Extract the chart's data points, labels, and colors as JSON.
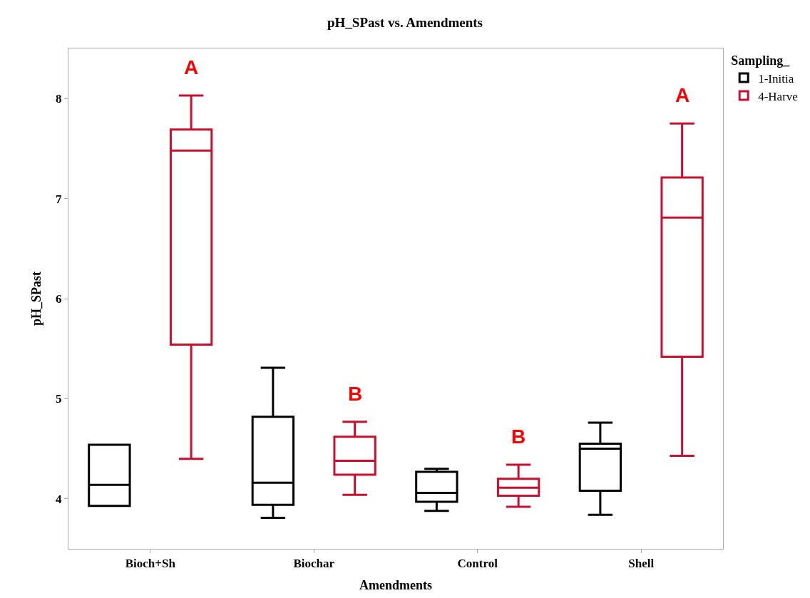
{
  "chart_data": {
    "type": "box",
    "title": "pH_SPast vs. Amendments",
    "xlabel": "Amendments",
    "ylabel": "pH_SPast",
    "legend_title": "Sampling_",
    "categories": [
      "Bioch+Sh",
      "Biochar",
      "Control",
      "Shell"
    ],
    "series": [
      {
        "name": "1-Initia",
        "color": "#000000",
        "boxes": [
          {
            "low": 3.93,
            "q1": 3.93,
            "median": 4.14,
            "q3": 4.54,
            "high": 4.54
          },
          {
            "low": 3.81,
            "q1": 3.94,
            "median": 4.16,
            "q3": 4.82,
            "high": 5.31
          },
          {
            "low": 3.88,
            "q1": 3.97,
            "median": 4.06,
            "q3": 4.27,
            "high": 4.3
          },
          {
            "low": 3.84,
            "q1": 4.08,
            "median": 4.5,
            "q3": 4.55,
            "high": 4.76
          }
        ]
      },
      {
        "name": "4-Harve",
        "color": "#c8102e",
        "boxes": [
          {
            "low": 4.4,
            "q1": 5.54,
            "median": 7.48,
            "q3": 7.69,
            "high": 8.03
          },
          {
            "low": 4.04,
            "q1": 4.24,
            "median": 4.38,
            "q3": 4.62,
            "high": 4.77
          },
          {
            "low": 3.92,
            "q1": 4.03,
            "median": 4.11,
            "q3": 4.2,
            "high": 4.34
          },
          {
            "low": 4.43,
            "q1": 5.42,
            "median": 6.81,
            "q3": 7.21,
            "high": 7.75
          }
        ]
      }
    ],
    "annotations": [
      "A",
      "B",
      "B",
      "A"
    ],
    "ylim": [
      3.5,
      8.5
    ],
    "yticks": [
      4,
      5,
      6,
      7,
      8
    ],
    "legend": "top right"
  }
}
